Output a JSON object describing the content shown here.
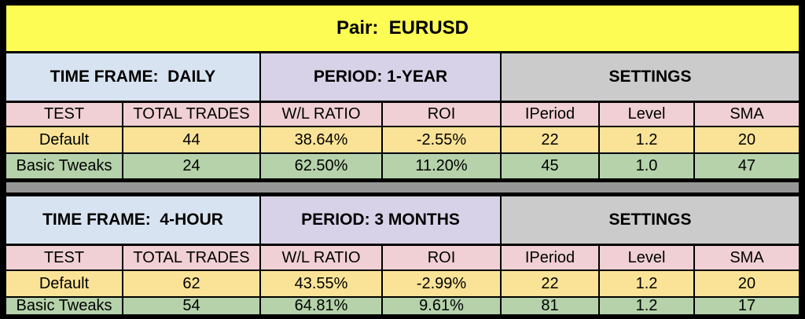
{
  "title": "Pair:  EURUSD",
  "colors": {
    "title_background": "#FCFC54",
    "time_frame_background": "#D8E3F1",
    "period_background": "#D8D2E8",
    "settings_background": "#CBCBCB",
    "header_row_background": "#F0D0D4",
    "default_row_background": "#FAE397",
    "tweaks_row_background": "#B5D2AA",
    "divider_background": "#969696",
    "border": "#000000"
  },
  "chart_data": {
    "type": "table",
    "title": "Pair: EURUSD",
    "sections": [
      {
        "time_frame": "DAILY",
        "period": "1-YEAR",
        "columns": [
          "TEST",
          "TOTAL TRADES",
          "W/L RATIO",
          "ROI",
          "IPeriod",
          "Level",
          "SMA"
        ],
        "rows": [
          [
            "Default",
            44,
            "38.64%",
            "-2.55%",
            22,
            1.2,
            20
          ],
          [
            "Basic Tweaks",
            24,
            "62.50%",
            "11.20%",
            45,
            1.0,
            47
          ]
        ]
      },
      {
        "time_frame": "4-HOUR",
        "period": "3 MONTHS",
        "columns": [
          "TEST",
          "TOTAL TRADES",
          "W/L RATIO",
          "ROI",
          "IPeriod",
          "Level",
          "SMA"
        ],
        "rows": [
          [
            "Default",
            62,
            "43.55%",
            "-2.99%",
            22,
            1.2,
            20
          ],
          [
            "Basic Tweaks",
            54,
            "64.81%",
            "9.61%",
            81,
            1.2,
            17
          ]
        ]
      }
    ]
  },
  "sections": [
    {
      "time_frame_label": "TIME FRAME:  DAILY",
      "period_label": "PERIOD: 1-YEAR",
      "settings_label": "SETTINGS",
      "columns": [
        "TEST",
        "TOTAL TRADES",
        "W/L RATIO",
        "ROI",
        "IPeriod",
        "Level",
        "SMA"
      ],
      "rows": [
        {
          "cells": [
            "Default",
            "44",
            "38.64%",
            "-2.55%",
            "22",
            "1.2",
            "20"
          ]
        },
        {
          "cells": [
            "Basic Tweaks",
            "24",
            "62.50%",
            "11.20%",
            "45",
            "1.0",
            "47"
          ]
        }
      ]
    },
    {
      "time_frame_label": "TIME FRAME:  4-HOUR",
      "period_label": "PERIOD: 3 MONTHS",
      "settings_label": "SETTINGS",
      "columns": [
        "TEST",
        "TOTAL TRADES",
        "W/L RATIO",
        "ROI",
        "IPeriod",
        "Level",
        "SMA"
      ],
      "rows": [
        {
          "cells": [
            "Default",
            "62",
            "43.55%",
            "-2.99%",
            "22",
            "1.2",
            "20"
          ]
        },
        {
          "cells": [
            "Basic Tweaks",
            "54",
            "64.81%",
            "9.61%",
            "81",
            "1.2",
            "17"
          ]
        }
      ]
    }
  ]
}
